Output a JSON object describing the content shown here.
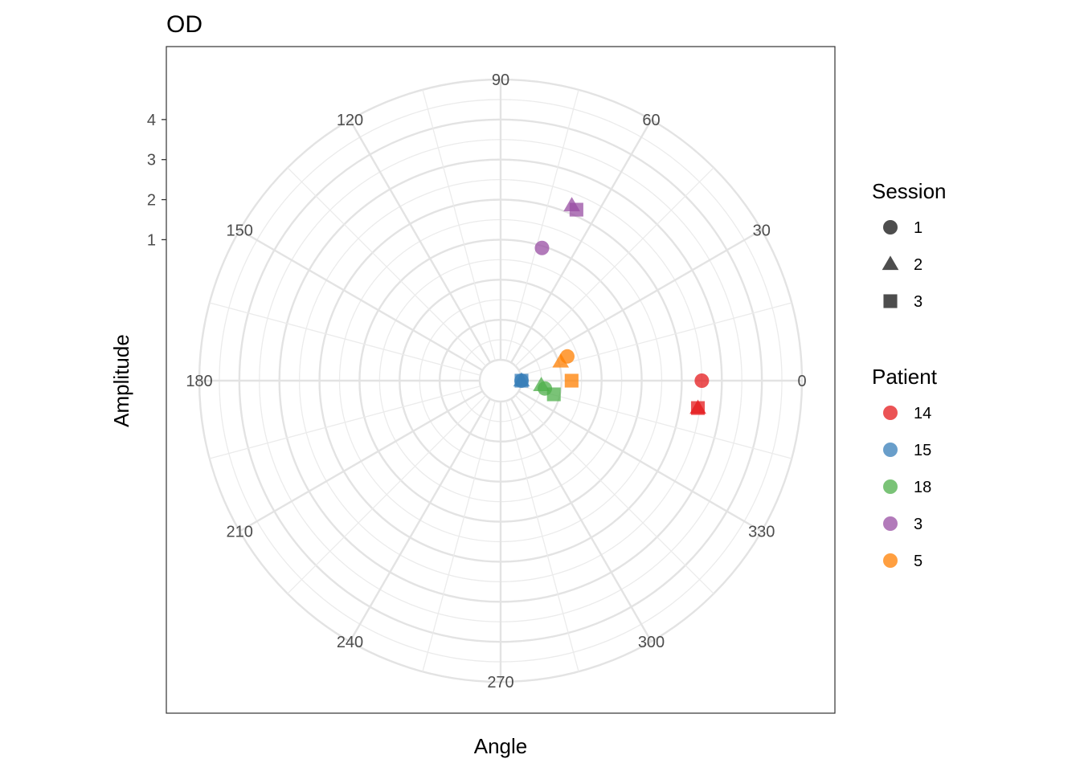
{
  "chart_data": {
    "type": "scatter",
    "coordinate_system": "polar",
    "title": "OD",
    "xlabel": "Angle",
    "ylabel": "Amplitude",
    "angle_ticks": [
      0,
      30,
      60,
      90,
      120,
      150,
      180,
      210,
      240,
      270,
      300,
      330
    ],
    "amplitude_ticks": [
      1,
      2,
      3,
      4
    ],
    "amplitude_range": [
      -2,
      5
    ],
    "grid": true,
    "legends": [
      {
        "title": "Session",
        "entries": [
          {
            "label": "1",
            "shape": "circle"
          },
          {
            "label": "2",
            "shape": "triangle"
          },
          {
            "label": "3",
            "shape": "square"
          }
        ]
      },
      {
        "title": "Patient",
        "entries": [
          {
            "label": "14",
            "color": "#E41A1C"
          },
          {
            "label": "15",
            "color": "#377EB8"
          },
          {
            "label": "18",
            "color": "#4DAF4A"
          },
          {
            "label": "3",
            "color": "#984EA3"
          },
          {
            "label": "5",
            "color": "#FF7F00"
          }
        ]
      }
    ],
    "legend_position": "right",
    "points": [
      {
        "patient": "14",
        "session": "1",
        "angle": 0.0,
        "amplitude": 2.5
      },
      {
        "patient": "14",
        "session": "2",
        "angle": 352.1,
        "amplitude": 2.45
      },
      {
        "patient": "14",
        "session": "3",
        "angle": 352.1,
        "amplitude": 2.45
      },
      {
        "patient": "15",
        "session": "1",
        "angle": 0.0,
        "amplitude": -2.0
      },
      {
        "patient": "15",
        "session": "2",
        "angle": 0.0,
        "amplitude": -2.0
      },
      {
        "patient": "15",
        "session": "3",
        "angle": 0.0,
        "amplitude": -2.0
      },
      {
        "patient": "18",
        "session": "1",
        "angle": 350.0,
        "amplitude": -1.4
      },
      {
        "patient": "18",
        "session": "2",
        "angle": 353.5,
        "amplitude": -1.5
      },
      {
        "patient": "18",
        "session": "3",
        "angle": 345.6,
        "amplitude": -1.15
      },
      {
        "patient": "3",
        "session": "1",
        "angle": 72.7,
        "amplitude": 0.95
      },
      {
        "patient": "3",
        "session": "2",
        "angle": 67.9,
        "amplitude": 2.2
      },
      {
        "patient": "3",
        "session": "3",
        "angle": 66.1,
        "amplitude": 2.15
      },
      {
        "patient": "5",
        "session": "1",
        "angle": 20.0,
        "amplitude": -0.75
      },
      {
        "patient": "5",
        "session": "2",
        "angle": 17.5,
        "amplitude": -0.95
      },
      {
        "patient": "5",
        "session": "3",
        "angle": 0.0,
        "amplitude": -0.75
      }
    ]
  }
}
